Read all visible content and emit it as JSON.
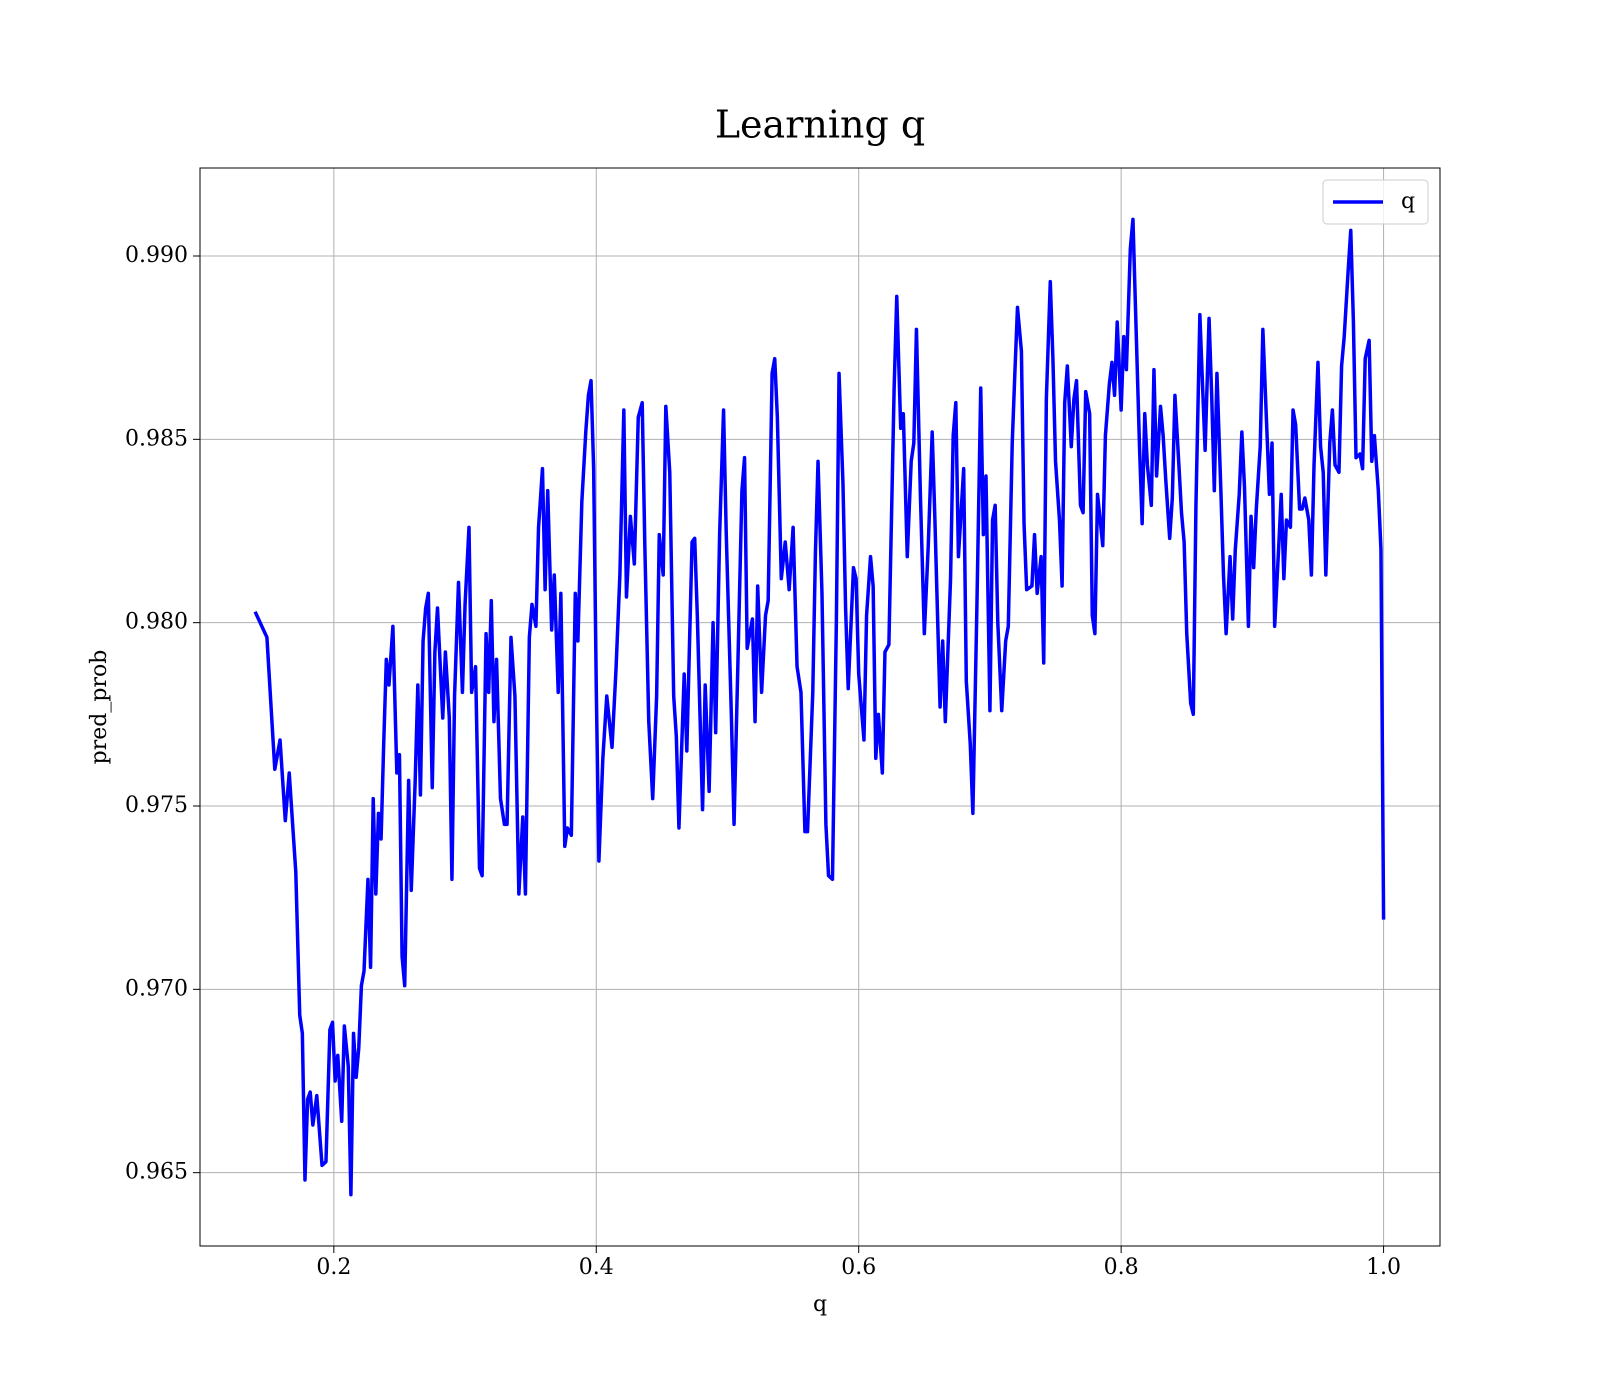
{
  "chart_data": {
    "type": "line",
    "title": "Learning q",
    "xlabel": "q",
    "ylabel": "pred_prob",
    "xlim": [
      0.098,
      1.043
    ],
    "ylim": [
      0.963,
      0.9924
    ],
    "xticks": [
      0.2,
      0.4,
      0.6,
      0.8,
      {
        "value": 1,
        "label": "1.0"
      }
    ],
    "yticks": [
      0.965,
      {
        "value": 0.97,
        "label": "0.970"
      },
      0.975,
      {
        "value": 0.98,
        "label": "0.980"
      },
      0.985,
      {
        "value": 0.99,
        "label": "0.990"
      }
    ],
    "grid": true,
    "legend": "upper right",
    "x": [
      0.14,
      0.149,
      0.155,
      0.159,
      0.163,
      0.166,
      0.171,
      0.174,
      0.176,
      0.178,
      0.18,
      0.182,
      0.184,
      0.187,
      0.191,
      0.194,
      0.197,
      0.199,
      0.201,
      0.203,
      0.206,
      0.208,
      0.211,
      0.213,
      0.215,
      0.217,
      0.219,
      0.221,
      0.223,
      0.226,
      0.228,
      0.23,
      0.232,
      0.234,
      0.236,
      0.238,
      0.24,
      0.242,
      0.245,
      0.248,
      0.25,
      0.252,
      0.254,
      0.257,
      0.259,
      0.262,
      0.264,
      0.266,
      0.268,
      0.27,
      0.272,
      0.275,
      0.277,
      0.279,
      0.283,
      0.285,
      0.288,
      0.29,
      0.292,
      0.295,
      0.298,
      0.3,
      0.303,
      0.305,
      0.308,
      0.311,
      0.313,
      0.316,
      0.318,
      0.32,
      0.322,
      0.324,
      0.327,
      0.33,
      0.332,
      0.335,
      0.338,
      0.341,
      0.344,
      0.346,
      0.349,
      0.351,
      0.354,
      0.356,
      0.359,
      0.361,
      0.363,
      0.366,
      0.368,
      0.371,
      0.373,
      0.376,
      0.378,
      0.381,
      0.384,
      0.386,
      0.389,
      0.392,
      0.394,
      0.396,
      0.398,
      0.4,
      0.402,
      0.405,
      0.408,
      0.412,
      0.415,
      0.418,
      0.421,
      0.423,
      0.426,
      0.429,
      0.432,
      0.435,
      0.437,
      0.44,
      0.443,
      0.446,
      0.448,
      0.451,
      0.453,
      0.456,
      0.459,
      0.461,
      0.463,
      0.467,
      0.469,
      0.473,
      0.475,
      0.477,
      0.481,
      0.483,
      0.486,
      0.489,
      0.491,
      0.494,
      0.497,
      0.499,
      0.503,
      0.505,
      0.508,
      0.511,
      0.513,
      0.515,
      0.519,
      0.521,
      0.523,
      0.526,
      0.529,
      0.531,
      0.534,
      0.536,
      0.538,
      0.541,
      0.544,
      0.547,
      0.55,
      0.553,
      0.556,
      0.559,
      0.561,
      0.565,
      0.567,
      0.569,
      0.572,
      0.575,
      0.577,
      0.58,
      0.583,
      0.585,
      0.588,
      0.59,
      0.592,
      0.596,
      0.598,
      0.6,
      0.604,
      0.606,
      0.609,
      0.611,
      0.613,
      0.615,
      0.618,
      0.62,
      0.623,
      0.627,
      0.629,
      0.632,
      0.634,
      0.637,
      0.64,
      0.642,
      0.644,
      0.647,
      0.65,
      0.653,
      0.656,
      0.658,
      0.662,
      0.664,
      0.666,
      0.67,
      0.672,
      0.674,
      0.676,
      0.68,
      0.682,
      0.685,
      0.687,
      0.69,
      0.693,
      0.695,
      0.697,
      0.7,
      0.702,
      0.704,
      0.706,
      0.709,
      0.712,
      0.714,
      0.717,
      0.719,
      0.721,
      0.724,
      0.726,
      0.728,
      0.732,
      0.734,
      0.736,
      0.739,
      0.741,
      0.743,
      0.746,
      0.748,
      0.75,
      0.753,
      0.755,
      0.757,
      0.759,
      0.762,
      0.764,
      0.766,
      0.769,
      0.771,
      0.773,
      0.776,
      0.778,
      0.78,
      0.782,
      0.786,
      0.788,
      0.791,
      0.793,
      0.795,
      0.797,
      0.8,
      0.802,
      0.804,
      0.807,
      0.809,
      0.811,
      0.814,
      0.816,
      0.818,
      0.82,
      0.823,
      0.825,
      0.827,
      0.83,
      0.832,
      0.834,
      0.837,
      0.839,
      0.841,
      0.844,
      0.846,
      0.848,
      0.85,
      0.853,
      0.855,
      0.857,
      0.86,
      0.862,
      0.864,
      0.867,
      0.869,
      0.871,
      0.873,
      0.876,
      0.878,
      0.88,
      0.883,
      0.885,
      0.887,
      0.89,
      0.892,
      0.894,
      0.897,
      0.899,
      0.901,
      0.903,
      0.906,
      0.908,
      0.91,
      0.913,
      0.915,
      0.917,
      0.92,
      0.922,
      0.924,
      0.926,
      0.929,
      0.931,
      0.933,
      0.936,
      0.938,
      0.94,
      0.943,
      0.945,
      0.947,
      0.95,
      0.952,
      0.954,
      0.956,
      0.959,
      0.961,
      0.963,
      0.966,
      0.968,
      0.97,
      0.973,
      0.975,
      0.977,
      0.979,
      0.982,
      0.984,
      0.986,
      0.989,
      0.991,
      0.993,
      0.996,
      0.998,
      1.0
    ],
    "series": [
      {
        "name": "q",
        "color": "#0000ff",
        "values": [
          0.9803,
          0.9796,
          0.976,
          0.9768,
          0.9746,
          0.9759,
          0.9732,
          0.9693,
          0.9688,
          0.9648,
          0.967,
          0.9672,
          0.9663,
          0.9671,
          0.9652,
          0.9653,
          0.9689,
          0.9691,
          0.9675,
          0.9682,
          0.9664,
          0.969,
          0.9679,
          0.9644,
          0.9688,
          0.9676,
          0.9684,
          0.9701,
          0.9705,
          0.973,
          0.9706,
          0.9752,
          0.9726,
          0.9748,
          0.9741,
          0.9767,
          0.979,
          0.9783,
          0.9799,
          0.9759,
          0.9764,
          0.9709,
          0.9701,
          0.9757,
          0.9727,
          0.9757,
          0.9783,
          0.9753,
          0.9795,
          0.9804,
          0.9808,
          0.9755,
          0.9792,
          0.9804,
          0.9774,
          0.9792,
          0.9774,
          0.973,
          0.978,
          0.9811,
          0.9781,
          0.9805,
          0.9826,
          0.9781,
          0.9788,
          0.9733,
          0.9731,
          0.9797,
          0.9781,
          0.9806,
          0.9773,
          0.979,
          0.9752,
          0.9745,
          0.9745,
          0.9796,
          0.978,
          0.9726,
          0.9747,
          0.9726,
          0.9796,
          0.9805,
          0.9799,
          0.9826,
          0.9842,
          0.9809,
          0.9836,
          0.9798,
          0.9813,
          0.9781,
          0.9808,
          0.9739,
          0.9744,
          0.9742,
          0.9808,
          0.9795,
          0.9833,
          0.9852,
          0.9862,
          0.9866,
          0.9842,
          0.9782,
          0.9735,
          0.9763,
          0.978,
          0.9766,
          0.9787,
          0.9813,
          0.9858,
          0.9807,
          0.9829,
          0.9816,
          0.9856,
          0.986,
          0.9821,
          0.9773,
          0.9752,
          0.978,
          0.9824,
          0.9813,
          0.9859,
          0.9841,
          0.978,
          0.9769,
          0.9744,
          0.9786,
          0.9765,
          0.9822,
          0.9823,
          0.9802,
          0.9749,
          0.9783,
          0.9754,
          0.98,
          0.977,
          0.9824,
          0.9858,
          0.9825,
          0.9774,
          0.9745,
          0.979,
          0.9836,
          0.9845,
          0.9793,
          0.9801,
          0.9773,
          0.981,
          0.9781,
          0.9802,
          0.9806,
          0.9868,
          0.9872,
          0.9856,
          0.9812,
          0.9822,
          0.9809,
          0.9826,
          0.9788,
          0.9781,
          0.9743,
          0.9743,
          0.9781,
          0.9819,
          0.9844,
          0.9808,
          0.9745,
          0.9731,
          0.973,
          0.9801,
          0.9868,
          0.9838,
          0.9804,
          0.9782,
          0.9815,
          0.9812,
          0.9786,
          0.9768,
          0.9802,
          0.9818,
          0.981,
          0.9763,
          0.9775,
          0.9759,
          0.9792,
          0.9794,
          0.9864,
          0.9889,
          0.9853,
          0.9857,
          0.9818,
          0.9844,
          0.9849,
          0.988,
          0.9835,
          0.9797,
          0.9821,
          0.9852,
          0.9829,
          0.9777,
          0.9795,
          0.9773,
          0.9812,
          0.9851,
          0.986,
          0.9818,
          0.9842,
          0.9784,
          0.9767,
          0.9748,
          0.9803,
          0.9864,
          0.9824,
          0.984,
          0.9776,
          0.9828,
          0.9832,
          0.98,
          0.9776,
          0.9795,
          0.9799,
          0.9849,
          0.9868,
          0.9886,
          0.9874,
          0.9827,
          0.9809,
          0.981,
          0.9824,
          0.9808,
          0.9818,
          0.9789,
          0.9861,
          0.9893,
          0.9872,
          0.9844,
          0.9828,
          0.981,
          0.986,
          0.987,
          0.9848,
          0.9861,
          0.9866,
          0.9832,
          0.983,
          0.9863,
          0.9857,
          0.9802,
          0.9797,
          0.9835,
          0.9821,
          0.9851,
          0.9865,
          0.9871,
          0.9862,
          0.9882,
          0.9858,
          0.9878,
          0.9869,
          0.9902,
          0.991,
          0.9885,
          0.9848,
          0.9827,
          0.9857,
          0.9843,
          0.9832,
          0.9869,
          0.984,
          0.9859,
          0.9851,
          0.9839,
          0.9823,
          0.9834,
          0.9862,
          0.9843,
          0.983,
          0.9822,
          0.9797,
          0.9778,
          0.9775,
          0.9832,
          0.9884,
          0.9865,
          0.9847,
          0.9883,
          0.9862,
          0.9836,
          0.9868,
          0.9836,
          0.9813,
          0.9797,
          0.9818,
          0.9801,
          0.982,
          0.9835,
          0.9852,
          0.9837,
          0.9799,
          0.9829,
          0.9815,
          0.9831,
          0.9848,
          0.988,
          0.9862,
          0.9835,
          0.9849,
          0.9799,
          0.982,
          0.9835,
          0.9812,
          0.9828,
          0.9826,
          0.9858,
          0.9854,
          0.9831,
          0.9831,
          0.9834,
          0.9828,
          0.9813,
          0.9843,
          0.9871,
          0.9848,
          0.9841,
          0.9813,
          0.9849,
          0.9858,
          0.9843,
          0.9841,
          0.987,
          0.9878,
          0.9896,
          0.9907,
          0.9882,
          0.9845,
          0.9846,
          0.9842,
          0.9872,
          0.9877,
          0.9844,
          0.9851,
          0.9836,
          0.982,
          0.9719
        ]
      }
    ]
  }
}
